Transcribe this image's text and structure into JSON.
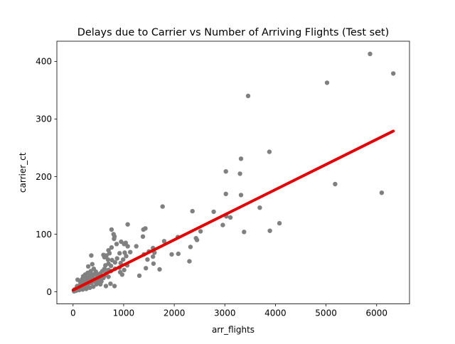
{
  "chart_data": {
    "type": "scatter",
    "title": "Delays due to Carrier vs Number of Arriving Flights (Test set)",
    "xlabel": "arr_flights",
    "ylabel": "carrier_ct",
    "xlim": [
      -320,
      6650
    ],
    "ylim": [
      -21,
      435
    ],
    "xticks": [
      0,
      1000,
      2000,
      3000,
      4000,
      5000,
      6000
    ],
    "yticks": [
      0,
      100,
      200,
      300,
      400
    ],
    "grid": false,
    "colors": {
      "points": "#808080",
      "fit_line": "#e50000"
    },
    "fit_line": {
      "x": [
        0,
        6330
      ],
      "y": [
        3,
        279
      ]
    },
    "points": [
      [
        5870,
        413
      ],
      [
        6330,
        379
      ],
      [
        5020,
        363
      ],
      [
        3460,
        340
      ],
      [
        3880,
        243
      ],
      [
        3320,
        231
      ],
      [
        3020,
        209
      ],
      [
        3300,
        205
      ],
      [
        5180,
        187
      ],
      [
        6100,
        172
      ],
      [
        3020,
        170
      ],
      [
        3320,
        168
      ],
      [
        3690,
        146
      ],
      [
        1770,
        148
      ],
      [
        2360,
        140
      ],
      [
        2780,
        139
      ],
      [
        3030,
        131
      ],
      [
        3110,
        129
      ],
      [
        2960,
        116
      ],
      [
        4080,
        119
      ],
      [
        3380,
        104
      ],
      [
        3890,
        106
      ],
      [
        1080,
        117
      ],
      [
        1430,
        110
      ],
      [
        1390,
        108
      ],
      [
        2520,
        105
      ],
      [
        2430,
        93
      ],
      [
        2450,
        90
      ],
      [
        2320,
        78
      ],
      [
        2080,
        66
      ],
      [
        1950,
        65
      ],
      [
        2300,
        53
      ],
      [
        2070,
        95
      ],
      [
        1800,
        88
      ],
      [
        1580,
        76
      ],
      [
        1500,
        70
      ],
      [
        1610,
        68
      ],
      [
        1400,
        65
      ],
      [
        1580,
        61
      ],
      [
        1470,
        56
      ],
      [
        1590,
        49
      ],
      [
        1440,
        41
      ],
      [
        1710,
        39
      ],
      [
        1310,
        28
      ],
      [
        1250,
        79
      ],
      [
        1130,
        69
      ],
      [
        1040,
        85
      ],
      [
        1010,
        83
      ],
      [
        950,
        87
      ],
      [
        1080,
        79
      ],
      [
        1380,
        96
      ],
      [
        1020,
        68
      ],
      [
        920,
        67
      ],
      [
        1050,
        62
      ],
      [
        870,
        58
      ],
      [
        990,
        56
      ],
      [
        940,
        50
      ],
      [
        1070,
        46
      ],
      [
        920,
        42
      ],
      [
        1010,
        38
      ],
      [
        930,
        34
      ],
      [
        970,
        30
      ],
      [
        760,
        108
      ],
      [
        800,
        100
      ],
      [
        820,
        96
      ],
      [
        810,
        92
      ],
      [
        860,
        83
      ],
      [
        760,
        77
      ],
      [
        700,
        72
      ],
      [
        720,
        67
      ],
      [
        660,
        63
      ],
      [
        600,
        64
      ],
      [
        620,
        60
      ],
      [
        690,
        56
      ],
      [
        770,
        55
      ],
      [
        830,
        51
      ],
      [
        700,
        49
      ],
      [
        640,
        46
      ],
      [
        750,
        45
      ],
      [
        830,
        40
      ],
      [
        620,
        40
      ],
      [
        700,
        38
      ],
      [
        750,
        36
      ],
      [
        660,
        33
      ],
      [
        580,
        36
      ],
      [
        540,
        32
      ],
      [
        620,
        28
      ],
      [
        700,
        26
      ],
      [
        600,
        24
      ],
      [
        510,
        22
      ],
      [
        560,
        18
      ],
      [
        740,
        14
      ],
      [
        820,
        10
      ],
      [
        650,
        10
      ],
      [
        540,
        13
      ],
      [
        480,
        27
      ],
      [
        430,
        31
      ],
      [
        390,
        25
      ],
      [
        360,
        63
      ],
      [
        380,
        48
      ],
      [
        300,
        44
      ],
      [
        410,
        40
      ],
      [
        350,
        36
      ],
      [
        290,
        33
      ],
      [
        240,
        30
      ],
      [
        330,
        28
      ],
      [
        260,
        25
      ],
      [
        200,
        27
      ],
      [
        310,
        21
      ],
      [
        250,
        19
      ],
      [
        180,
        22
      ],
      [
        140,
        18
      ],
      [
        90,
        21
      ],
      [
        200,
        15
      ],
      [
        140,
        12
      ],
      [
        80,
        10
      ],
      [
        220,
        9
      ],
      [
        290,
        12
      ],
      [
        360,
        15
      ],
      [
        420,
        18
      ],
      [
        460,
        13
      ],
      [
        400,
        9
      ],
      [
        330,
        7
      ],
      [
        260,
        5
      ],
      [
        190,
        4
      ],
      [
        120,
        3
      ],
      [
        60,
        2
      ],
      [
        20,
        1
      ],
      [
        30,
        4
      ],
      [
        70,
        7
      ],
      [
        100,
        6
      ],
      [
        160,
        8
      ],
      [
        230,
        11
      ],
      [
        300,
        17
      ],
      [
        350,
        22
      ],
      [
        270,
        14
      ],
      [
        210,
        12
      ],
      [
        150,
        7
      ],
      [
        110,
        4
      ],
      [
        50,
        3
      ],
      [
        400,
        23
      ],
      [
        440,
        20
      ],
      [
        480,
        16
      ],
      [
        520,
        20
      ],
      [
        560,
        26
      ],
      [
        500,
        30
      ],
      [
        450,
        35
      ],
      [
        380,
        30
      ],
      [
        330,
        24
      ],
      [
        280,
        20
      ],
      [
        230,
        17
      ],
      [
        170,
        14
      ]
    ]
  }
}
